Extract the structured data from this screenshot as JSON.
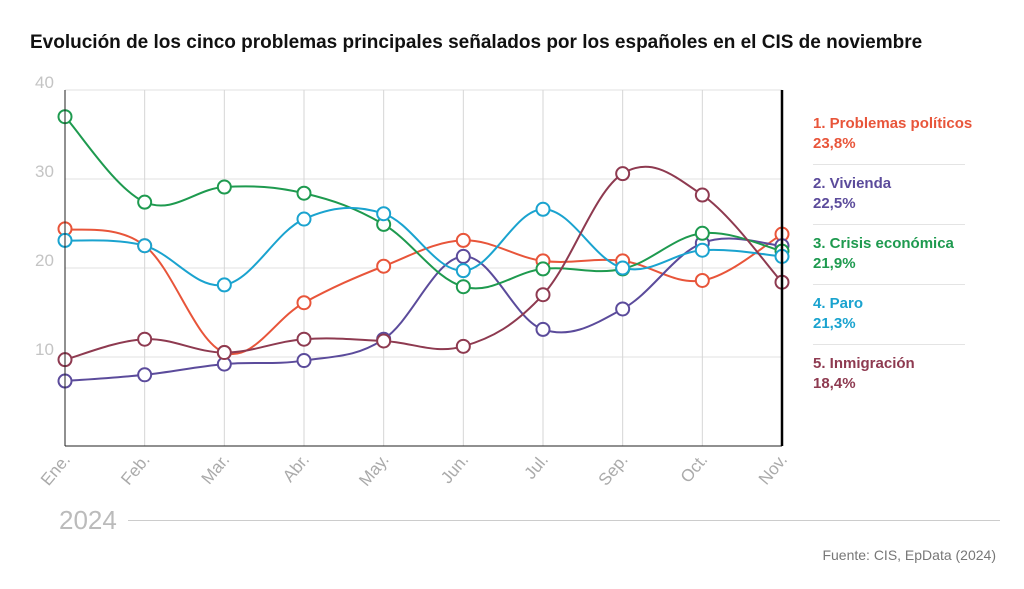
{
  "title": "Evolución de los cinco problemas principales señalados por los españoles en el CIS de noviembre",
  "source": "Fuente: CIS, EpData (2024)",
  "year_label": "2024",
  "chart_data": {
    "type": "line",
    "title": "Evolución de los cinco problemas principales señalados por los españoles en el CIS de noviembre",
    "categories": [
      "Ene.",
      "Feb.",
      "Mar.",
      "Abr.",
      "May.",
      "Jun.",
      "Jul.",
      "Sep.",
      "Oct.",
      "Nov."
    ],
    "ylim": [
      0,
      40
    ],
    "yticks": [
      "10",
      "20",
      "30",
      "40"
    ],
    "grid": true,
    "legend_placement": "right",
    "series": [
      {
        "name": "1.  Problemas políticos",
        "label": "23,8%",
        "color": "#e8553a",
        "values": [
          24.4,
          22.5,
          10.5,
          16.1,
          20.2,
          23.1,
          20.8,
          20.8,
          18.6,
          23.8
        ]
      },
      {
        "name": "2. Vivienda",
        "label": "22,5%",
        "color": "#5b4b9b",
        "values": [
          7.3,
          8.0,
          9.2,
          9.6,
          12.0,
          21.3,
          13.1,
          15.4,
          22.8,
          22.5
        ]
      },
      {
        "name": "3. Crisis económica",
        "label": "21,9%",
        "color": "#1e9a4f",
        "values": [
          37.0,
          27.4,
          29.1,
          28.4,
          24.9,
          17.9,
          19.9,
          19.9,
          23.9,
          21.9
        ]
      },
      {
        "name": "4. Paro",
        "label": "21,3%",
        "color": "#1aa3cf",
        "values": [
          23.1,
          22.5,
          18.1,
          25.5,
          26.1,
          19.7,
          26.6,
          20.0,
          22.0,
          21.3
        ]
      },
      {
        "name": "5. Inmigración",
        "label": "18,4%",
        "color": "#8e3a50",
        "values": [
          9.7,
          12.0,
          10.5,
          12.0,
          11.8,
          11.2,
          17.0,
          30.6,
          28.2,
          18.4
        ]
      }
    ]
  }
}
